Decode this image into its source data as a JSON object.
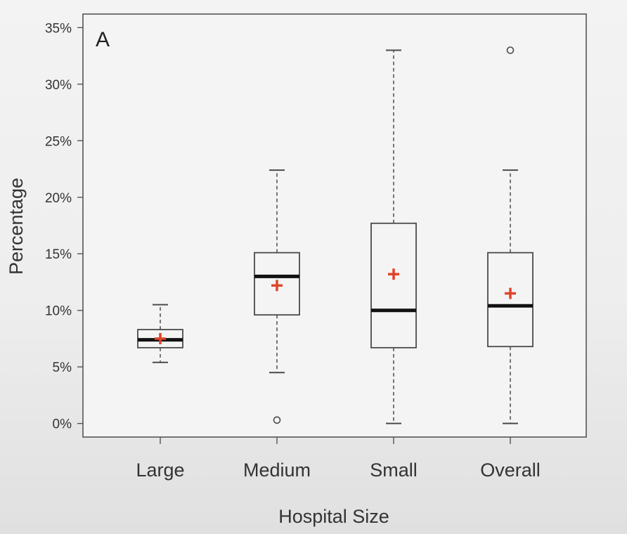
{
  "chart_data": {
    "type": "box",
    "panel_label": "A",
    "xlabel": "Hospital Size",
    "ylabel": "Percentage",
    "ylim": [
      -1.2,
      36.2
    ],
    "yticks": [
      0,
      5,
      10,
      15,
      20,
      25,
      30,
      35
    ],
    "ytick_labels": [
      "0%",
      "5%",
      "10%",
      "15%",
      "20%",
      "25%",
      "30%",
      "35%"
    ],
    "categories": [
      "Large",
      "Medium",
      "Small",
      "Overall"
    ],
    "boxes": [
      {
        "name": "Large",
        "whisker_low": 5.4,
        "q1": 6.7,
        "median": 7.4,
        "q3": 8.3,
        "whisker_high": 10.5,
        "mean": 7.5,
        "outliers": []
      },
      {
        "name": "Medium",
        "whisker_low": 4.5,
        "q1": 9.6,
        "median": 13.0,
        "q3": 15.1,
        "whisker_high": 22.4,
        "mean": 12.2,
        "outliers": [
          0.3
        ]
      },
      {
        "name": "Small",
        "whisker_low": 0.0,
        "q1": 6.7,
        "median": 10.0,
        "q3": 17.7,
        "whisker_high": 33.0,
        "mean": 13.2,
        "outliers": []
      },
      {
        "name": "Overall",
        "whisker_low": 0.0,
        "q1": 6.8,
        "median": 10.4,
        "q3": 15.1,
        "whisker_high": 22.4,
        "mean": 11.5,
        "outliers": [
          33.0
        ]
      }
    ],
    "colors": {
      "box": "#4a4a4a",
      "median": "#111111",
      "mean_marker": "#e0452b",
      "axis": "#555555",
      "text": "#333333"
    },
    "grid": false
  }
}
